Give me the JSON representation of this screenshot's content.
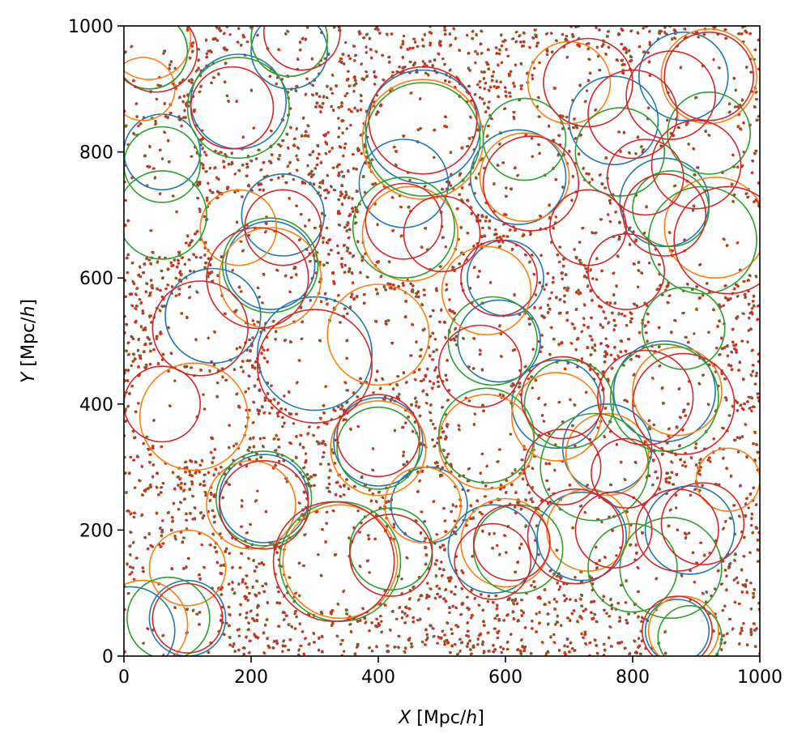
{
  "chart_data": {
    "type": "scatter",
    "xlabel_var": "X",
    "ylabel_var": "Y",
    "xlabel_unit_pre": "[Mpc/",
    "xlabel_unit_h": "h",
    "xlabel_unit_post": "]",
    "ylabel_unit_pre": "[Mpc/",
    "ylabel_unit_h": "h",
    "ylabel_unit_post": "]",
    "xlim": [
      0,
      1000
    ],
    "ylim": [
      0,
      1000
    ],
    "xticks": [
      0,
      200,
      400,
      600,
      800,
      1000
    ],
    "yticks": [
      0,
      200,
      400,
      600,
      800,
      1000
    ],
    "xtick_labels": [
      "0",
      "200",
      "400",
      "600",
      "800",
      "1000"
    ],
    "ytick_labels": [
      "0",
      "200",
      "400",
      "600",
      "800",
      "1000"
    ],
    "grid": false,
    "legend": "none",
    "approx_points_per_series": 3500,
    "series": [
      {
        "color": "#1f77b4",
        "circles": [
          [
            620,
            760,
            75
          ],
          [
            880,
            920,
            70
          ],
          [
            440,
            750,
            70
          ],
          [
            250,
            700,
            65
          ],
          [
            850,
            720,
            70
          ],
          [
            230,
            620,
            70
          ],
          [
            140,
            540,
            75
          ],
          [
            300,
            480,
            90
          ],
          [
            590,
            500,
            65
          ],
          [
            400,
            340,
            70
          ],
          [
            480,
            240,
            60
          ],
          [
            850,
            420,
            80
          ],
          [
            760,
            330,
            70
          ],
          [
            890,
            200,
            70
          ],
          [
            720,
            190,
            70
          ],
          [
            220,
            250,
            70
          ],
          [
            100,
            60,
            60
          ],
          [
            10,
            40,
            70
          ],
          [
            870,
            40,
            50
          ],
          [
            60,
            800,
            60
          ],
          [
            180,
            880,
            75
          ],
          [
            40,
            960,
            60
          ],
          [
            260,
            960,
            60
          ],
          [
            470,
            840,
            90
          ],
          [
            770,
            850,
            70
          ],
          [
            600,
            600,
            60
          ],
          [
            680,
            400,
            70
          ],
          [
            580,
            170,
            70
          ]
        ]
      },
      {
        "color": "#ff7f0e",
        "circles": [
          [
            630,
            760,
            70
          ],
          [
            700,
            910,
            65
          ],
          [
            920,
            920,
            75
          ],
          [
            470,
            820,
            95
          ],
          [
            450,
            670,
            75
          ],
          [
            180,
            680,
            60
          ],
          [
            230,
            600,
            80
          ],
          [
            400,
            510,
            80
          ],
          [
            110,
            380,
            85
          ],
          [
            400,
            330,
            75
          ],
          [
            340,
            150,
            90
          ],
          [
            100,
            140,
            60
          ],
          [
            30,
            900,
            50
          ],
          [
            260,
            980,
            60
          ],
          [
            40,
            980,
            65
          ],
          [
            570,
            340,
            75
          ],
          [
            760,
            320,
            65
          ],
          [
            680,
            380,
            70
          ],
          [
            930,
            680,
            80
          ],
          [
            950,
            280,
            50
          ],
          [
            880,
            40,
            55
          ],
          [
            30,
            50,
            70
          ],
          [
            600,
            180,
            70
          ],
          [
            730,
            200,
            65
          ],
          [
            570,
            580,
            70
          ],
          [
            870,
            420,
            70
          ],
          [
            470,
            240,
            60
          ],
          [
            200,
            240,
            70
          ]
        ]
      },
      {
        "color": "#2ca02c",
        "circles": [
          [
            630,
            820,
            65
          ],
          [
            700,
            400,
            70
          ],
          [
            780,
            800,
            70
          ],
          [
            860,
            710,
            60
          ],
          [
            910,
            660,
            85
          ],
          [
            440,
            680,
            80
          ],
          [
            920,
            830,
            65
          ],
          [
            60,
            700,
            70
          ],
          [
            60,
            780,
            60
          ],
          [
            180,
            870,
            80
          ],
          [
            260,
            980,
            60
          ],
          [
            40,
            960,
            60
          ],
          [
            570,
            350,
            75
          ],
          [
            740,
            300,
            85
          ],
          [
            800,
            140,
            70
          ],
          [
            860,
            140,
            80
          ],
          [
            620,
            170,
            70
          ],
          [
            420,
            170,
            65
          ],
          [
            340,
            150,
            95
          ],
          [
            220,
            250,
            75
          ],
          [
            70,
            60,
            65
          ],
          [
            890,
            30,
            50
          ],
          [
            880,
            520,
            65
          ],
          [
            850,
            410,
            85
          ],
          [
            580,
            500,
            70
          ],
          [
            470,
            820,
            90
          ],
          [
            400,
            330,
            65
          ],
          [
            230,
            620,
            75
          ]
        ]
      },
      {
        "color": "#d62728",
        "circles": [
          [
            640,
            750,
            75
          ],
          [
            470,
            850,
            85
          ],
          [
            170,
            870,
            65
          ],
          [
            50,
            960,
            65
          ],
          [
            280,
            990,
            60
          ],
          [
            730,
            910,
            70
          ],
          [
            920,
            920,
            70
          ],
          [
            860,
            890,
            70
          ],
          [
            800,
            860,
            70
          ],
          [
            900,
            780,
            70
          ],
          [
            820,
            760,
            60
          ],
          [
            850,
            700,
            65
          ],
          [
            950,
            660,
            85
          ],
          [
            730,
            680,
            60
          ],
          [
            790,
            610,
            60
          ],
          [
            590,
            600,
            60
          ],
          [
            500,
            670,
            60
          ],
          [
            440,
            690,
            60
          ],
          [
            250,
            680,
            60
          ],
          [
            210,
            600,
            80
          ],
          [
            120,
            520,
            75
          ],
          [
            60,
            400,
            60
          ],
          [
            300,
            460,
            90
          ],
          [
            560,
            460,
            65
          ],
          [
            820,
            410,
            75
          ],
          [
            880,
            400,
            80
          ],
          [
            690,
            410,
            65
          ],
          [
            330,
            150,
            95
          ],
          [
            420,
            160,
            65
          ],
          [
            580,
            150,
            60
          ],
          [
            610,
            180,
            60
          ],
          [
            710,
            190,
            75
          ],
          [
            770,
            200,
            60
          ],
          [
            870,
            200,
            65
          ],
          [
            910,
            210,
            65
          ],
          [
            220,
            240,
            70
          ],
          [
            100,
            60,
            55
          ],
          [
            870,
            40,
            55
          ],
          [
            400,
            350,
            65
          ],
          [
            690,
            300,
            60
          ],
          [
            790,
            290,
            55
          ]
        ]
      }
    ]
  }
}
